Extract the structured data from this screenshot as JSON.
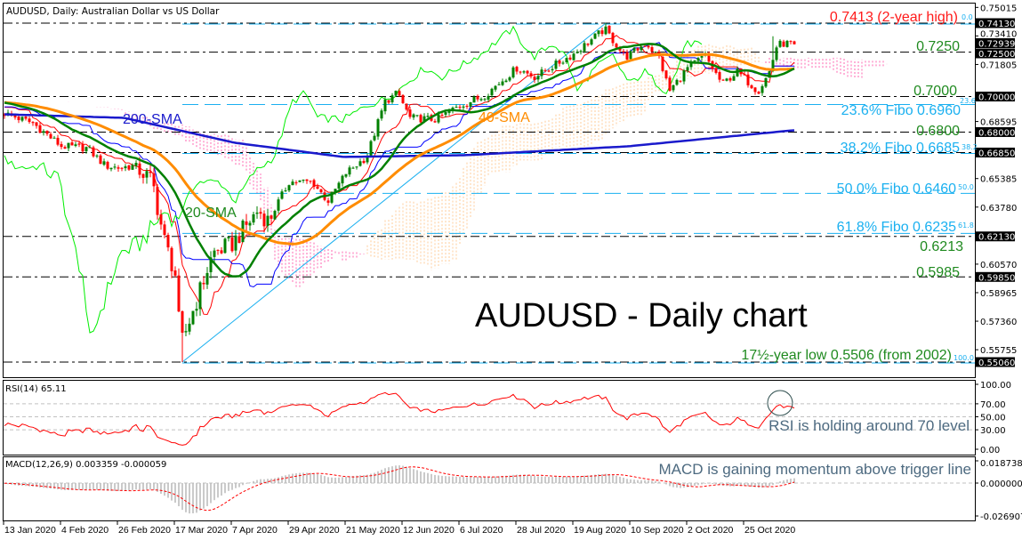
{
  "header": {
    "title": "AUDUSD, Daily:  Australian Dollar vs US Dollar"
  },
  "chart_data": {
    "type": "candlestick",
    "title": "AUDUSD - Daily chart",
    "symbol": "AUDUSD",
    "timeframe": "Daily",
    "ylim": [
      0.5455,
      0.752
    ],
    "colors": {
      "bull": "#008000",
      "bear": "#ff0000",
      "sma20": "#008000",
      "sma40": "#ff8c00",
      "sma200": "#1a1acc",
      "tenkan": "#ff0000",
      "kijun": "#0000ff",
      "chikou": "#00ee00",
      "cloud_up": "#ffcc99",
      "cloud_down": "#ff66b2",
      "fibo": "#1ab0f0",
      "level": "#000000"
    },
    "x_ticks": [
      "13 Jan 2020",
      "4 Feb 2020",
      "26 Feb 2020",
      "17 Mar 2020",
      "7 Apr 2020",
      "29 Apr 2020",
      "21 May 2020",
      "12 Jun 2020",
      "6 Jul 2020",
      "28 Jul 2020",
      "19 Aug 2020",
      "10 Sep 2020",
      "2 Oct 2020",
      "25 Oct 2020"
    ],
    "y_ticks": [
      "0.75015",
      "0.73410",
      "0.71805",
      "0.68595",
      "0.65385",
      "0.63780",
      "0.60570",
      "0.58965",
      "0.57360",
      "0.55755"
    ],
    "price_tags": [
      "0.74130",
      "0.72939",
      "0.72500",
      "0.70000",
      "0.68000",
      "0.66850",
      "0.62130",
      "0.59850",
      "0.55060"
    ],
    "close_approx": [
      [
        "2020-01-13",
        0.6905
      ],
      [
        "2020-01-24",
        0.685
      ],
      [
        "2020-02-04",
        0.672
      ],
      [
        "2020-02-14",
        0.671
      ],
      [
        "2020-02-21",
        0.661
      ],
      [
        "2020-02-26",
        0.66
      ],
      [
        "2020-03-03",
        0.661
      ],
      [
        "2020-03-09",
        0.652
      ],
      [
        "2020-03-13",
        0.62
      ],
      [
        "2020-03-17",
        0.6
      ],
      [
        "2020-03-19",
        0.56
      ],
      [
        "2020-03-23",
        0.577
      ],
      [
        "2020-03-31",
        0.612
      ],
      [
        "2020-04-07",
        0.617
      ],
      [
        "2020-04-17",
        0.636
      ],
      [
        "2020-04-21",
        0.63
      ],
      [
        "2020-04-29",
        0.652
      ],
      [
        "2020-05-08",
        0.652
      ],
      [
        "2020-05-14",
        0.641
      ],
      [
        "2020-05-21",
        0.657
      ],
      [
        "2020-05-29",
        0.666
      ],
      [
        "2020-06-05",
        0.697
      ],
      [
        "2020-06-10",
        0.702
      ],
      [
        "2020-06-15",
        0.688
      ],
      [
        "2020-06-26",
        0.687
      ],
      [
        "2020-07-06",
        0.695
      ],
      [
        "2020-07-15",
        0.7
      ],
      [
        "2020-07-28",
        0.716
      ],
      [
        "2020-08-04",
        0.711
      ],
      [
        "2020-08-19",
        0.724
      ],
      [
        "2020-08-31",
        0.738
      ],
      [
        "2020-09-08",
        0.722
      ],
      [
        "2020-09-16",
        0.73
      ],
      [
        "2020-09-21",
        0.722
      ],
      [
        "2020-09-25",
        0.703
      ],
      [
        "2020-10-02",
        0.716
      ],
      [
        "2020-10-09",
        0.723
      ],
      [
        "2020-10-16",
        0.707
      ],
      [
        "2020-10-22",
        0.714
      ],
      [
        "2020-10-30",
        0.703
      ],
      [
        "2020-11-03",
        0.713
      ],
      [
        "2020-11-06",
        0.729
      ],
      [
        "2020-11-09",
        0.73
      ],
      [
        "2020-11-12",
        0.7294
      ]
    ],
    "sma200_approx": [
      [
        "2020-01-13",
        0.69
      ],
      [
        "2020-02-28",
        0.688
      ],
      [
        "2020-04-08",
        0.674
      ],
      [
        "2020-05-20",
        0.666
      ],
      [
        "2020-07-08",
        0.667
      ],
      [
        "2020-09-09",
        0.672
      ],
      [
        "2020-11-12",
        0.681
      ]
    ],
    "two_year_high": {
      "date": "2020-08-31",
      "price": 0.7413
    },
    "multi_year_low": {
      "date": "2020-03-19",
      "price": 0.5506
    },
    "last_close": 0.72939,
    "levels": [
      0.7413,
      0.725,
      0.7,
      0.68,
      0.6685,
      0.6213,
      0.5985,
      0.5506
    ],
    "fibo_levels": [
      0.7413,
      0.696,
      0.6685,
      0.646,
      0.6235,
      0.5506
    ],
    "annotations": {
      "high": "0.7413 (2-year high)",
      "l7250": "0.7250",
      "l7000": "0.7000",
      "f236": "23.6% Fibo 0.6960",
      "l6800": "0.6800",
      "f382": "38.2% Fibo 0.6685",
      "f500": "50.0% Fibo 0.6460",
      "f618": "61.8% Fibo 0.6235",
      "l6213": "0.6213",
      "l5985": "0.5985",
      "low": "17½-year low 0.5506 (from 2002)",
      "fibo_small": [
        "0.0",
        "23.6",
        "38.2",
        "50.0",
        "61.8",
        "100.0"
      ],
      "sma200": "200-SMA",
      "sma40": "40-SMA",
      "sma20": "20-SMA"
    },
    "rsi": {
      "label": "RSI(14) 65.11",
      "ticks": [
        "100.00",
        "70.00",
        "50.00",
        "30.00",
        "0.00"
      ],
      "note": "RSI is holding around 70 level"
    },
    "macd": {
      "label": "MACD(12,26,9) 0.003359 -0.000059",
      "ticks": [
        "0.018738",
        "0.000000",
        "-0.026907"
      ],
      "note": "MACD is gaining momentum above trigger line"
    }
  }
}
